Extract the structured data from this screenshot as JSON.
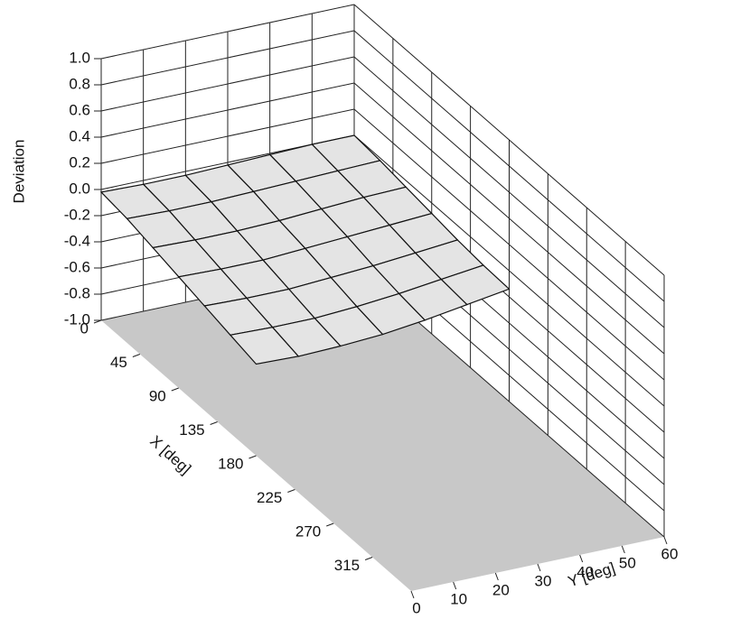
{
  "chart_data": {
    "type": "surface3d",
    "z_label": "Deviation",
    "x_label": "X [deg]",
    "y_label": "Y [deg]",
    "x": [
      0,
      30,
      60,
      90,
      120,
      150,
      180
    ],
    "y": [
      0,
      10,
      20,
      30,
      40,
      50,
      60
    ],
    "z": [
      [
        -0.02,
        -0.03,
        -0.03,
        -0.02,
        -0.01,
        0.0,
        0.0
      ],
      [
        -0.05,
        -0.06,
        -0.06,
        -0.05,
        -0.04,
        -0.03,
        -0.02
      ],
      [
        -0.1,
        -0.11,
        -0.11,
        -0.1,
        -0.08,
        -0.06,
        -0.05
      ],
      [
        -0.15,
        -0.16,
        -0.16,
        -0.14,
        -0.12,
        -0.1,
        -0.08
      ],
      [
        -0.2,
        -0.21,
        -0.21,
        -0.19,
        -0.17,
        -0.14,
        -0.11
      ],
      [
        -0.25,
        -0.26,
        -0.26,
        -0.24,
        -0.21,
        -0.17,
        -0.13
      ],
      [
        -0.3,
        -0.31,
        -0.3,
        -0.28,
        -0.24,
        -0.19,
        -0.14
      ]
    ],
    "surface_color": "#e4e4e4",
    "floor_color": "#c8c8c8",
    "xlim": [
      0,
      360
    ],
    "xticks": [
      0,
      45,
      90,
      135,
      180,
      225,
      270,
      315
    ],
    "ylim": [
      0,
      60
    ],
    "yticks": [
      0,
      10,
      20,
      30,
      40,
      50,
      60
    ],
    "zlim": [
      -1,
      1
    ],
    "zticks": [
      {
        "value": -1,
        "label": "-1.0"
      },
      -0.8,
      -0.6,
      -0.4,
      -0.2,
      {
        "value": 0,
        "label": "0.0"
      },
      0.2,
      0.4,
      0.6,
      0.8,
      {
        "value": 1,
        "label": "1.0"
      }
    ],
    "grid": true
  }
}
